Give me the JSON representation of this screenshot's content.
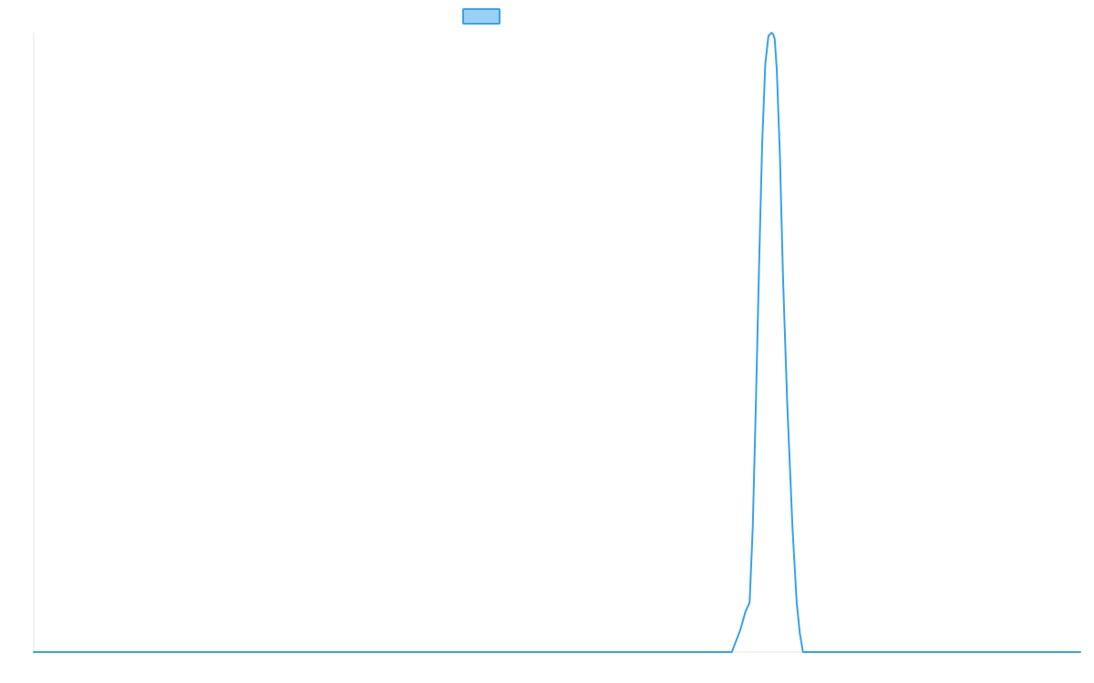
{
  "chart_data": {
    "type": "line",
    "title": "",
    "xlabel": "",
    "ylabel": "",
    "legend": {
      "placement": "top-center",
      "label": ""
    },
    "grid": false,
    "xlim": [
      0,
      100
    ],
    "ylim": [
      0,
      100
    ],
    "series": [
      {
        "color": "#36A2EB",
        "fill_color": "#9AD0F5",
        "x": [
          0,
          66.7,
          67.5,
          68.0,
          68.4,
          68.7,
          69.0,
          69.3,
          69.6,
          69.9,
          70.2,
          70.5,
          70.65,
          70.8,
          71.0,
          71.3,
          71.6,
          72.0,
          72.5,
          72.9,
          73.2,
          73.5,
          100
        ],
        "y": [
          0,
          0,
          3.5,
          6.5,
          8.0,
          20,
          40,
          62,
          82,
          95,
          99.5,
          100,
          99.8,
          99,
          94,
          80,
          60,
          40,
          20,
          8,
          3,
          0,
          0
        ]
      }
    ]
  }
}
